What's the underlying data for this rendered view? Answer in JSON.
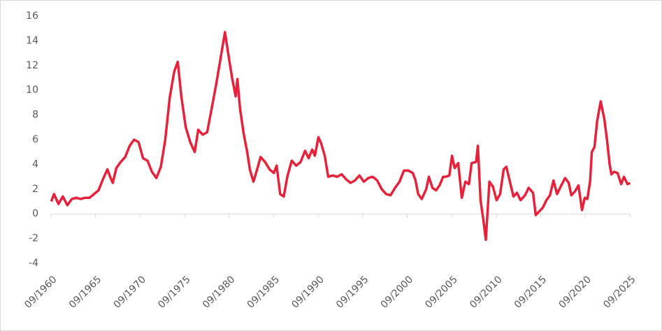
{
  "chart_data": {
    "type": "line",
    "color": "#e8213b",
    "x": [
      1960.7,
      1961.0,
      1961.5,
      1962.0,
      1962.5,
      1963.0,
      1963.5,
      1964.0,
      1964.5,
      1965.0,
      1965.5,
      1966.0,
      1966.5,
      1967.0,
      1967.3,
      1967.6,
      1968.0,
      1968.5,
      1969.0,
      1969.5,
      1970.0,
      1970.5,
      1971.0,
      1971.5,
      1972.0,
      1972.5,
      1973.0,
      1973.5,
      1974.0,
      1974.5,
      1974.9,
      1975.3,
      1975.8,
      1976.3,
      1976.8,
      1977.2,
      1977.7,
      1978.2,
      1978.7,
      1979.2,
      1979.6,
      1980.2,
      1980.6,
      1981.0,
      1981.4,
      1981.6,
      1981.9,
      1982.3,
      1982.7,
      1983.0,
      1983.4,
      1983.9,
      1984.2,
      1984.7,
      1985.2,
      1985.7,
      1986.0,
      1986.4,
      1986.8,
      1987.2,
      1987.7,
      1988.2,
      1988.7,
      1989.2,
      1989.6,
      1990.0,
      1990.3,
      1990.7,
      1991.0,
      1991.4,
      1991.8,
      1992.3,
      1992.8,
      1993.3,
      1993.8,
      1994.3,
      1994.8,
      1995.3,
      1995.8,
      1996.3,
      1996.8,
      1997.3,
      1997.8,
      1998.3,
      1998.8,
      1999.3,
      1999.8,
      2000.3,
      2000.8,
      2001.3,
      2001.6,
      2001.9,
      2002.3,
      2002.8,
      2003.1,
      2003.5,
      2003.9,
      2004.3,
      2004.7,
      2005.0,
      2005.4,
      2005.7,
      2006.0,
      2006.4,
      2006.8,
      2007.2,
      2007.6,
      2007.9,
      2008.4,
      2008.6,
      2008.9,
      2009.2,
      2009.5,
      2009.9,
      2010.3,
      2010.7,
      2011.1,
      2011.5,
      2011.8,
      2012.2,
      2012.6,
      2013.0,
      2013.4,
      2013.9,
      2014.3,
      2014.8,
      2015.1,
      2015.5,
      2015.9,
      2016.3,
      2016.7,
      2017.1,
      2017.5,
      2017.9,
      2018.4,
      2018.8,
      2019.1,
      2019.5,
      2019.9,
      2020.3,
      2020.6,
      2020.9,
      2021.2,
      2021.4,
      2021.7,
      2022.0,
      2022.4,
      2022.8,
      2023.1,
      2023.4,
      2023.6,
      2023.9,
      2024.3,
      2024.7,
      2025.0,
      2025.4,
      2025.7
    ],
    "values": [
      1.0,
      1.6,
      0.8,
      1.4,
      0.7,
      1.2,
      1.3,
      1.2,
      1.3,
      1.3,
      1.6,
      1.9,
      2.8,
      3.6,
      3.0,
      2.5,
      3.7,
      4.2,
      4.6,
      5.5,
      6.0,
      5.8,
      4.5,
      4.3,
      3.4,
      2.9,
      3.8,
      6.0,
      9.4,
      11.5,
      12.3,
      9.5,
      7.0,
      5.8,
      5.0,
      6.8,
      6.4,
      6.6,
      8.5,
      10.4,
      12.1,
      14.7,
      12.8,
      11.0,
      9.5,
      10.9,
      8.5,
      6.5,
      5.0,
      3.6,
      2.6,
      3.8,
      4.6,
      4.2,
      3.6,
      3.3,
      3.9,
      1.6,
      1.4,
      3.0,
      4.3,
      3.9,
      4.2,
      5.1,
      4.5,
      5.2,
      4.7,
      6.2,
      5.7,
      4.7,
      3.0,
      3.1,
      3.0,
      3.2,
      2.8,
      2.5,
      2.7,
      3.1,
      2.6,
      2.9,
      3.0,
      2.7,
      2.0,
      1.6,
      1.5,
      2.1,
      2.6,
      3.5,
      3.5,
      3.3,
      2.7,
      1.6,
      1.2,
      2.0,
      3.0,
      2.1,
      1.9,
      2.3,
      3.0,
      3.0,
      3.1,
      4.7,
      3.7,
      4.1,
      1.3,
      2.6,
      2.4,
      4.1,
      4.2,
      5.5,
      1.1,
      -0.4,
      -2.1,
      2.6,
      2.2,
      1.1,
      1.6,
      3.6,
      3.8,
      2.6,
      1.4,
      1.7,
      1.1,
      1.5,
      2.1,
      1.7,
      -0.1,
      0.2,
      0.5,
      1.1,
      1.5,
      2.7,
      1.6,
      2.2,
      2.9,
      2.5,
      1.5,
      1.8,
      2.3,
      0.3,
      1.3,
      1.2,
      2.6,
      5.0,
      5.4,
      7.5,
      9.1,
      7.7,
      6.0,
      4.0,
      3.2,
      3.4,
      3.3,
      2.4,
      3.0,
      2.4,
      2.5
    ],
    "xlim": [
      1960.67,
      2025.67
    ],
    "xticks": [
      {
        "value": 1960.67,
        "label": "09/1960"
      },
      {
        "value": 1965.67,
        "label": "09/1965"
      },
      {
        "value": 1970.67,
        "label": "09/1970"
      },
      {
        "value": 1975.67,
        "label": "09/1975"
      },
      {
        "value": 1980.67,
        "label": "09/1980"
      },
      {
        "value": 1985.67,
        "label": "09/1985"
      },
      {
        "value": 1990.67,
        "label": "09/1990"
      },
      {
        "value": 1995.67,
        "label": "09/1995"
      },
      {
        "value": 2000.67,
        "label": "09/2000"
      },
      {
        "value": 2005.67,
        "label": "09/2005"
      },
      {
        "value": 2010.67,
        "label": "09/2010"
      },
      {
        "value": 2015.67,
        "label": "09/2015"
      },
      {
        "value": 2020.67,
        "label": "09/2020"
      },
      {
        "value": 2025.67,
        "label": "09/2025"
      }
    ],
    "ylim": [
      -4,
      16
    ],
    "yticks": [
      -4,
      -2,
      0,
      2,
      4,
      6,
      8,
      10,
      12,
      14,
      16
    ],
    "grid": false
  }
}
